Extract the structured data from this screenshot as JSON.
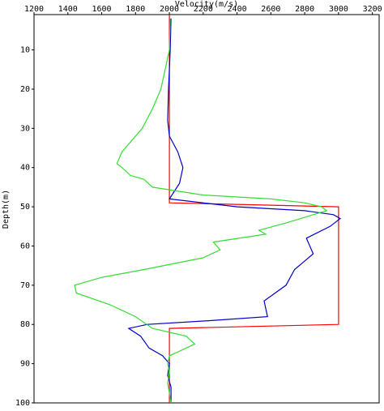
{
  "chart_data": {
    "type": "line",
    "x_label": "Velocity(m/s)",
    "y_label": "Depth(m)",
    "xlim": [
      1200,
      3240
    ],
    "xticks": [
      1200,
      1400,
      1600,
      1800,
      2000,
      2200,
      2400,
      2600,
      2800,
      3000,
      3200
    ],
    "ylim": [
      1,
      100
    ],
    "yticks": [
      10,
      20,
      30,
      40,
      50,
      60,
      70,
      80,
      90,
      100
    ],
    "y_inverted": true,
    "series": [
      {
        "color": "#ff0000",
        "depth": [
          1,
          49,
          50,
          80,
          81,
          100
        ],
        "values": [
          2000,
          2000,
          3000,
          3000,
          2000,
          2000
        ]
      },
      {
        "color": "#0000cc",
        "depth": [
          2,
          10,
          20,
          28,
          32,
          36,
          40,
          44,
          48,
          50,
          51,
          52,
          53,
          55,
          58,
          62,
          66,
          70,
          74,
          78,
          79,
          80,
          81,
          83,
          86,
          88,
          90,
          93,
          96,
          100
        ],
        "values": [
          2010,
          2005,
          1995,
          1990,
          2000,
          2050,
          2080,
          2060,
          2000,
          2400,
          2800,
          2970,
          3010,
          2950,
          2810,
          2850,
          2740,
          2690,
          2560,
          2580,
          2250,
          1870,
          1760,
          1830,
          1880,
          1960,
          2000,
          1990,
          2010,
          2010
        ]
      },
      {
        "color": "#33dd33",
        "depth": [
          2,
          10,
          20,
          25,
          30,
          33,
          36,
          39,
          40,
          42,
          43,
          45,
          47,
          48,
          49,
          50,
          51,
          52,
          54,
          56,
          57,
          59,
          61,
          63,
          66,
          68,
          70,
          72,
          75,
          78,
          81,
          83,
          85,
          86,
          88,
          90,
          92,
          95,
          100
        ],
        "values": [
          2005,
          2000,
          1950,
          1900,
          1840,
          1780,
          1720,
          1690,
          1720,
          1770,
          1850,
          1900,
          2200,
          2600,
          2800,
          2900,
          2930,
          2850,
          2700,
          2530,
          2570,
          2260,
          2300,
          2200,
          1850,
          1600,
          1440,
          1450,
          1650,
          1800,
          1900,
          2100,
          2150,
          2100,
          2000,
          1990,
          2000,
          1990,
          2010
        ]
      }
    ]
  }
}
